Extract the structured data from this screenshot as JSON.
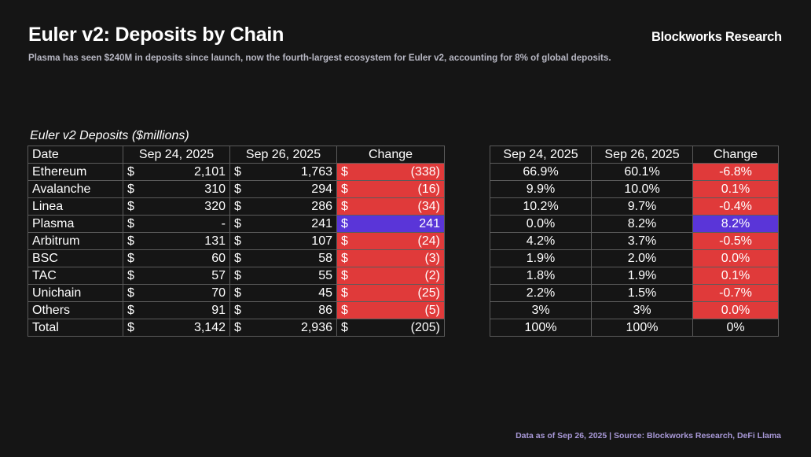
{
  "header": {
    "title": "Euler v2: Deposits by Chain",
    "brand": "Blockworks Research",
    "subtitle": "Plasma has seen $240M in deposits since launch, now the fourth-largest ecosystem for Euler v2, accounting for 8% of global deposits."
  },
  "footer": {
    "note": "Data as of Sep 26, 2025 | Source: Blockworks Research, DeFi Llama"
  },
  "colors": {
    "background": "#151515",
    "decrease": "#e03a3a",
    "increase": "#5a35d8",
    "footer": "#a999d8"
  },
  "chart_data": [
    {
      "type": "table",
      "title": "Euler v2 Deposits ($millions)",
      "columns": [
        "Date",
        "Sep 24, 2025",
        "Sep 26, 2025",
        "Change"
      ],
      "currency_symbol": "$",
      "rows": [
        {
          "chain": "Ethereum",
          "sep24": "2,101",
          "sep26": "1,763",
          "change": "(338)",
          "highlight": "decrease"
        },
        {
          "chain": "Avalanche",
          "sep24": "310",
          "sep26": "294",
          "change": "(16)",
          "highlight": "decrease"
        },
        {
          "chain": "Linea",
          "sep24": "320",
          "sep26": "286",
          "change": "(34)",
          "highlight": "decrease"
        },
        {
          "chain": "Plasma",
          "sep24": "-",
          "sep26": "241",
          "change": "241",
          "highlight": "increase"
        },
        {
          "chain": "Arbitrum",
          "sep24": "131",
          "sep26": "107",
          "change": "(24)",
          "highlight": "decrease"
        },
        {
          "chain": "BSC",
          "sep24": "60",
          "sep26": "58",
          "change": "(3)",
          "highlight": "decrease"
        },
        {
          "chain": "TAC",
          "sep24": "57",
          "sep26": "55",
          "change": "(2)",
          "highlight": "decrease"
        },
        {
          "chain": "Unichain",
          "sep24": "70",
          "sep26": "45",
          "change": "(25)",
          "highlight": "decrease"
        },
        {
          "chain": "Others",
          "sep24": "91",
          "sep26": "86",
          "change": "(5)",
          "highlight": "decrease"
        },
        {
          "chain": "Total",
          "sep24": "3,142",
          "sep26": "2,936",
          "change": "(205)",
          "highlight": "none"
        }
      ]
    },
    {
      "type": "table",
      "title": "",
      "columns": [
        "Sep 24, 2025",
        "Sep 26, 2025",
        "Change"
      ],
      "rows": [
        {
          "sep24": "66.9%",
          "sep26": "60.1%",
          "change": "-6.8%",
          "highlight": "decrease"
        },
        {
          "sep24": "9.9%",
          "sep26": "10.0%",
          "change": "0.1%",
          "highlight": "decrease"
        },
        {
          "sep24": "10.2%",
          "sep26": "9.7%",
          "change": "-0.4%",
          "highlight": "decrease"
        },
        {
          "sep24": "0.0%",
          "sep26": "8.2%",
          "change": "8.2%",
          "highlight": "increase"
        },
        {
          "sep24": "4.2%",
          "sep26": "3.7%",
          "change": "-0.5%",
          "highlight": "decrease"
        },
        {
          "sep24": "1.9%",
          "sep26": "2.0%",
          "change": "0.0%",
          "highlight": "decrease"
        },
        {
          "sep24": "1.8%",
          "sep26": "1.9%",
          "change": "0.1%",
          "highlight": "decrease"
        },
        {
          "sep24": "2.2%",
          "sep26": "1.5%",
          "change": "-0.7%",
          "highlight": "decrease"
        },
        {
          "sep24": "3%",
          "sep26": "3%",
          "change": "0.0%",
          "highlight": "decrease"
        },
        {
          "sep24": "100%",
          "sep26": "100%",
          "change": "0%",
          "highlight": "none"
        }
      ]
    }
  ]
}
